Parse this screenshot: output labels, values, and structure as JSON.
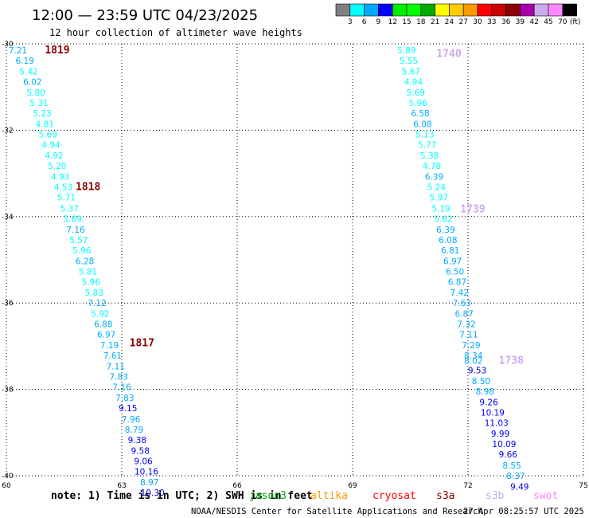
{
  "header": {
    "title": "12:00 — 23:59 UTC 04/23/2025",
    "subtitle": "12 hour collection of altimeter wave heights"
  },
  "legend": {
    "colors": [
      "#808080",
      "#00ffff",
      "#00aaff",
      "#0000ff",
      "#00ee00",
      "#00ff00",
      "#00aa00",
      "#ffff00",
      "#ffcc00",
      "#ff9900",
      "#ff0000",
      "#cc0000",
      "#880000",
      "#aa00aa",
      "#ccaaee",
      "#ff88ff",
      "#000000"
    ],
    "labels": [
      "3",
      "6",
      "9",
      "12",
      "15",
      "18",
      "21",
      "24",
      "27",
      "30",
      "33",
      "36",
      "39",
      "42",
      "45",
      "70"
    ],
    "unit": "(ft)"
  },
  "footer": {
    "note": "note: 1) Time is in UTC; 2) SWH is in feet",
    "satellites": [
      {
        "name": "jason3",
        "color": "#00aa00"
      },
      {
        "name": "altika",
        "color": "#ff9900"
      },
      {
        "name": "cryosat",
        "color": "#ff0000"
      },
      {
        "name": "s3a",
        "color": "#880000"
      },
      {
        "name": "s3b",
        "color": "#ccaaee"
      },
      {
        "name": "swot",
        "color": "#ff88ff"
      }
    ],
    "credit": "NOAA/NESDIS Center for Satellite Applications and Research",
    "timestamp": "27 Apr 08:25:57 UTC 2025"
  },
  "chart_data": {
    "type": "scatter",
    "xlim": [
      60,
      75
    ],
    "ylim": [
      -40,
      -30
    ],
    "xticks": [
      60,
      63,
      66,
      69,
      72,
      75
    ],
    "yticks": [
      -30,
      -32,
      -34,
      -36,
      -38,
      -40
    ],
    "grid": true,
    "series": [
      {
        "name": "west track",
        "color_by_value": true,
        "points": [
          {
            "x": 60.3,
            "y": -30.22,
            "v": "7.21"
          },
          {
            "x": 60.48,
            "y": -30.46,
            "v": "6.19"
          },
          {
            "x": 60.58,
            "y": -30.71,
            "v": "5.42"
          },
          {
            "x": 60.68,
            "y": -30.95,
            "v": "6.02"
          },
          {
            "x": 60.77,
            "y": -31.2,
            "v": "5.80"
          },
          {
            "x": 60.85,
            "y": -31.44,
            "v": "5.31"
          },
          {
            "x": 60.93,
            "y": -31.68,
            "v": "5.23"
          },
          {
            "x": 61.0,
            "y": -31.93,
            "v": "4.81"
          },
          {
            "x": 61.08,
            "y": -32.17,
            "v": "5.69"
          },
          {
            "x": 61.16,
            "y": -32.41,
            "v": "4.94"
          },
          {
            "x": 61.24,
            "y": -32.66,
            "v": "4.92"
          },
          {
            "x": 61.32,
            "y": -32.9,
            "v": "5.20"
          },
          {
            "x": 61.4,
            "y": -33.15,
            "v": "4.93"
          },
          {
            "x": 61.48,
            "y": -33.39,
            "v": "4.53"
          },
          {
            "x": 61.56,
            "y": -33.63,
            "v": "5.71"
          },
          {
            "x": 61.64,
            "y": -33.88,
            "v": "5.37"
          },
          {
            "x": 61.72,
            "y": -34.12,
            "v": "5.69"
          },
          {
            "x": 61.8,
            "y": -34.37,
            "v": "7.16"
          },
          {
            "x": 61.88,
            "y": -34.61,
            "v": "5.57"
          },
          {
            "x": 61.96,
            "y": -34.85,
            "v": "5.96"
          },
          {
            "x": 62.04,
            "y": -35.1,
            "v": "6.28"
          },
          {
            "x": 62.12,
            "y": -35.34,
            "v": "5.81"
          },
          {
            "x": 62.2,
            "y": -35.58,
            "v": "5.96"
          },
          {
            "x": 62.28,
            "y": -35.83,
            "v": "5.83"
          },
          {
            "x": 62.36,
            "y": -36.07,
            "v": "7.12"
          },
          {
            "x": 62.44,
            "y": -36.32,
            "v": "5.92"
          },
          {
            "x": 62.52,
            "y": -36.56,
            "v": "6.88"
          },
          {
            "x": 62.6,
            "y": -36.8,
            "v": "6.97"
          },
          {
            "x": 62.68,
            "y": -37.05,
            "v": "7.19"
          },
          {
            "x": 62.76,
            "y": -37.29,
            "v": "7.61"
          },
          {
            "x": 62.84,
            "y": -37.54,
            "v": "7.11"
          },
          {
            "x": 62.92,
            "y": -37.78,
            "v": "7.83"
          },
          {
            "x": 63.0,
            "y": -38.02,
            "v": "7.16"
          },
          {
            "x": 63.08,
            "y": -38.27,
            "v": "7.83"
          },
          {
            "x": 63.16,
            "y": -38.51,
            "v": "9.15"
          },
          {
            "x": 63.24,
            "y": -38.76,
            "v": "7.96"
          },
          {
            "x": 63.32,
            "y": -39.0,
            "v": "8.79"
          },
          {
            "x": 63.4,
            "y": -39.24,
            "v": "9.38"
          },
          {
            "x": 63.48,
            "y": -39.49,
            "v": "9.58"
          },
          {
            "x": 63.56,
            "y": -39.73,
            "v": "9.06"
          },
          {
            "x": 63.64,
            "y": -39.97,
            "v": "10.16"
          },
          {
            "x": 63.72,
            "y": -40.22,
            "v": "8.97"
          },
          {
            "x": 63.8,
            "y": -40.46,
            "v": "10.30"
          }
        ]
      },
      {
        "name": "east track",
        "color_by_value": true,
        "points": [
          {
            "x": 70.4,
            "y": -30.22,
            "v": "5.89"
          },
          {
            "x": 70.46,
            "y": -30.46,
            "v": "5.55"
          },
          {
            "x": 70.52,
            "y": -30.71,
            "v": "5.67"
          },
          {
            "x": 70.58,
            "y": -30.95,
            "v": "4.94"
          },
          {
            "x": 70.64,
            "y": -31.2,
            "v": "5.69"
          },
          {
            "x": 70.7,
            "y": -31.44,
            "v": "5.96"
          },
          {
            "x": 70.76,
            "y": -31.68,
            "v": "6.58"
          },
          {
            "x": 70.82,
            "y": -31.93,
            "v": "6.08"
          },
          {
            "x": 70.88,
            "y": -32.17,
            "v": "5.13"
          },
          {
            "x": 70.94,
            "y": -32.41,
            "v": "5.77"
          },
          {
            "x": 71.0,
            "y": -32.66,
            "v": "5.38"
          },
          {
            "x": 71.06,
            "y": -32.9,
            "v": "4.78"
          },
          {
            "x": 71.12,
            "y": -33.15,
            "v": "6.39"
          },
          {
            "x": 71.18,
            "y": -33.39,
            "v": "5.24"
          },
          {
            "x": 71.24,
            "y": -33.63,
            "v": "5.97"
          },
          {
            "x": 71.3,
            "y": -33.88,
            "v": "5.19"
          },
          {
            "x": 71.36,
            "y": -34.12,
            "v": "5.62"
          },
          {
            "x": 71.42,
            "y": -34.37,
            "v": "6.39"
          },
          {
            "x": 71.48,
            "y": -34.61,
            "v": "6.08"
          },
          {
            "x": 71.54,
            "y": -34.85,
            "v": "6.81"
          },
          {
            "x": 71.6,
            "y": -35.1,
            "v": "6.97"
          },
          {
            "x": 71.66,
            "y": -35.34,
            "v": "6.50"
          },
          {
            "x": 71.72,
            "y": -35.58,
            "v": "6.87"
          },
          {
            "x": 71.78,
            "y": -35.83,
            "v": "7.42"
          },
          {
            "x": 71.84,
            "y": -36.07,
            "v": "7.63"
          },
          {
            "x": 71.9,
            "y": -36.32,
            "v": "6.87"
          },
          {
            "x": 71.96,
            "y": -36.56,
            "v": "7.32"
          },
          {
            "x": 72.02,
            "y": -36.8,
            "v": "7.11"
          },
          {
            "x": 72.08,
            "y": -37.05,
            "v": "7.29"
          },
          {
            "x": 72.14,
            "y": -37.29,
            "v": "8.34"
          },
          {
            "x": 72.14,
            "y": -37.41,
            "v": "8.02"
          },
          {
            "x": 72.24,
            "y": -37.63,
            "v": "9.53"
          },
          {
            "x": 72.34,
            "y": -37.88,
            "v": "8.50"
          },
          {
            "x": 72.44,
            "y": -38.12,
            "v": "8.98"
          },
          {
            "x": 72.54,
            "y": -38.37,
            "v": "9.26"
          },
          {
            "x": 72.64,
            "y": -38.61,
            "v": "10.19"
          },
          {
            "x": 72.74,
            "y": -38.85,
            "v": "11.03"
          },
          {
            "x": 72.84,
            "y": -39.1,
            "v": "9.99"
          },
          {
            "x": 72.94,
            "y": -39.34,
            "v": "10.09"
          },
          {
            "x": 73.04,
            "y": -39.58,
            "v": "9.66"
          },
          {
            "x": 73.14,
            "y": -39.83,
            "v": "8.55"
          },
          {
            "x": 73.24,
            "y": -40.07,
            "v": "8.37"
          },
          {
            "x": 73.34,
            "y": -40.32,
            "v": "9.49"
          }
        ]
      }
    ],
    "annotations": [
      {
        "text": "1819",
        "x": 61.0,
        "y": -30.22,
        "color": "#880000"
      },
      {
        "text": "1818",
        "x": 61.8,
        "y": -33.39,
        "color": "#880000"
      },
      {
        "text": "1817",
        "x": 63.2,
        "y": -37.0,
        "color": "#880000"
      },
      {
        "text": "1740",
        "x": 71.18,
        "y": -30.3,
        "color": "#ccaaee"
      },
      {
        "text": "1739",
        "x": 71.8,
        "y": -33.9,
        "color": "#ccaaee"
      },
      {
        "text": "1738",
        "x": 72.8,
        "y": -37.41,
        "color": "#ccaaee"
      }
    ]
  }
}
